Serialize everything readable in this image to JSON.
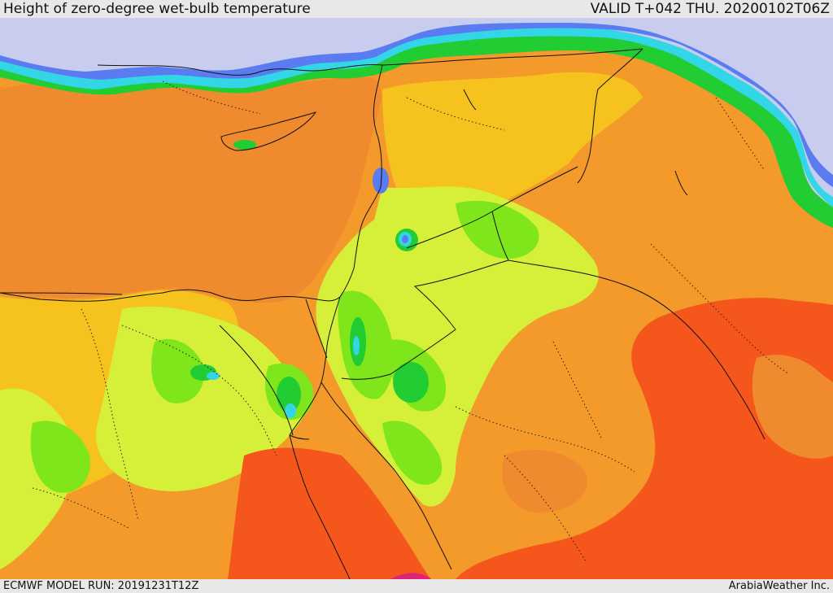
{
  "header": {
    "title": "Height of zero-degree wet-bulb temperature",
    "valid_time": "VALID T+042 THU. 20200102T06Z"
  },
  "footer": {
    "model_run": "ECMWF MODEL RUN: 20191231T12Z",
    "credit": "ArabiaWeather Inc."
  },
  "colors": {
    "sea_ice_background": "#c8ccee",
    "blue_low": "#5a7cf0",
    "cyan": "#33d6e6",
    "green_dark": "#22cc33",
    "green": "#7ee61a",
    "yellow_green": "#d6f03a",
    "yellow_orange": "#f5c21e",
    "orange": "#f39a2a",
    "orange_dark": "#f07e2c",
    "red_orange": "#f5561c",
    "magenta": "#e0237a"
  }
}
